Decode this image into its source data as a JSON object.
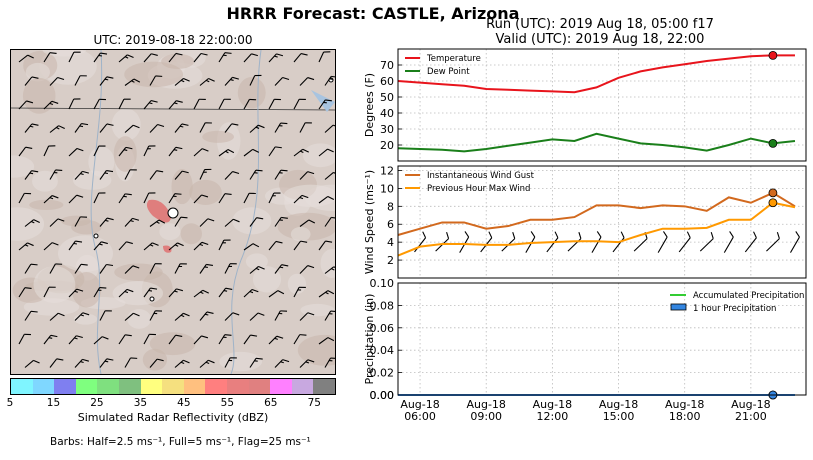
{
  "title": "HRRR Forecast: CASTLE, Arizona",
  "map": {
    "utc_label": "UTC: 2019-08-18 22:00:00",
    "colorbar": {
      "label": "Simulated Radar Reflectivity (dBZ)",
      "ticks": [
        "5",
        "15",
        "25",
        "35",
        "45",
        "55",
        "65",
        "75"
      ],
      "colors": [
        "#7ff5ff",
        "#7fd7ff",
        "#7f7ff0",
        "#7fff7f",
        "#7fe07f",
        "#7fc07f",
        "#ffff7f",
        "#f5e07f",
        "#ffc07f",
        "#ff7f7f",
        "#e87f7f",
        "#e08080",
        "#ff80ff",
        "#c8a8e0",
        "#808080"
      ]
    },
    "barbs_note": "Barbs: Half=2.5 ms⁻¹, Full=5 ms⁻¹, Flag=25 ms⁻¹"
  },
  "run_label": "Run (UTC): 2019 Aug 18, 05:00 f17",
  "valid_label": "Valid (UTC): 2019 Aug 18, 22:00",
  "chart_data": [
    {
      "type": "line",
      "ylabel": "Degrees (F)",
      "ylim": [
        10,
        80
      ],
      "yticks": [
        20,
        30,
        40,
        50,
        60,
        70
      ],
      "x": [
        5,
        6,
        7,
        8,
        9,
        10,
        11,
        12,
        13,
        14,
        15,
        16,
        17,
        18,
        19,
        20,
        21,
        22,
        23
      ],
      "series": [
        {
          "name": "Temperature",
          "color": "#e8141c",
          "values": [
            60,
            59,
            58,
            57,
            55,
            54.5,
            54,
            53.5,
            53,
            56,
            62,
            66,
            68.5,
            70.5,
            72.5,
            74,
            75.5,
            76,
            76
          ]
        },
        {
          "name": "Dew Point",
          "color": "#1a7f1a",
          "values": [
            18,
            17.5,
            17,
            16,
            17.5,
            19.5,
            21.5,
            23.5,
            22.5,
            27,
            24,
            21,
            20,
            18.5,
            16.5,
            20,
            24,
            21,
            22.5
          ]
        }
      ],
      "legend": "top-left",
      "marker_index": 17
    },
    {
      "type": "line",
      "ylabel": "Wind Speed (ms⁻¹)",
      "ylim": [
        0,
        12.5
      ],
      "yticks": [
        2,
        4,
        6,
        8,
        10,
        12
      ],
      "x": [
        5,
        6,
        7,
        8,
        9,
        10,
        11,
        12,
        13,
        14,
        15,
        16,
        17,
        18,
        19,
        20,
        21,
        22,
        23
      ],
      "series": [
        {
          "name": "Instantaneous Wind Gust",
          "color": "#d2691e",
          "values": [
            4.8,
            5.5,
            6.2,
            6.2,
            5.5,
            5.8,
            6.5,
            6.5,
            6.8,
            8.1,
            8.1,
            7.8,
            8.1,
            8.0,
            7.5,
            9.0,
            8.4,
            9.5,
            8.0
          ]
        },
        {
          "name": "Previous Hour Max Wind",
          "color": "#ff9900",
          "values": [
            2.5,
            3.5,
            3.8,
            3.8,
            3.7,
            3.7,
            3.9,
            4.0,
            4.1,
            4.1,
            4.0,
            4.8,
            5.5,
            5.5,
            5.6,
            6.5,
            6.5,
            8.4,
            7.9
          ]
        }
      ],
      "legend": "top-left",
      "marker_index": 17
    },
    {
      "type": "area",
      "ylabel": "Precipitation (in)",
      "ylim": [
        0,
        0.1
      ],
      "yticks": [
        "0.00",
        "0.02",
        "0.04",
        "0.06",
        "0.08",
        "0.10"
      ],
      "x": [
        5,
        6,
        7,
        8,
        9,
        10,
        11,
        12,
        13,
        14,
        15,
        16,
        17,
        18,
        19,
        20,
        21,
        22,
        23
      ],
      "series": [
        {
          "name": "Accumulated Precipitation",
          "color": "#33cc33",
          "values": [
            0,
            0,
            0,
            0,
            0,
            0,
            0,
            0,
            0,
            0,
            0,
            0,
            0,
            0,
            0,
            0,
            0,
            0,
            0
          ]
        },
        {
          "name": "1 hour Precipitation",
          "color": "#3385e0",
          "values": [
            0,
            0,
            0,
            0,
            0,
            0,
            0,
            0,
            0,
            0,
            0,
            0,
            0,
            0,
            0,
            0,
            0,
            0,
            0
          ]
        }
      ],
      "legend": "top-right",
      "marker_index": 17
    }
  ],
  "x_ticks": [
    {
      "hour": 6,
      "line1": "Aug-18",
      "line2": "06:00"
    },
    {
      "hour": 9,
      "line1": "Aug-18",
      "line2": "09:00"
    },
    {
      "hour": 12,
      "line1": "Aug-18",
      "line2": "12:00"
    },
    {
      "hour": 15,
      "line1": "Aug-18",
      "line2": "15:00"
    },
    {
      "hour": 18,
      "line1": "Aug-18",
      "line2": "18:00"
    },
    {
      "hour": 21,
      "line1": "Aug-18",
      "line2": "21:00"
    }
  ],
  "x_range": [
    5,
    23.5
  ]
}
